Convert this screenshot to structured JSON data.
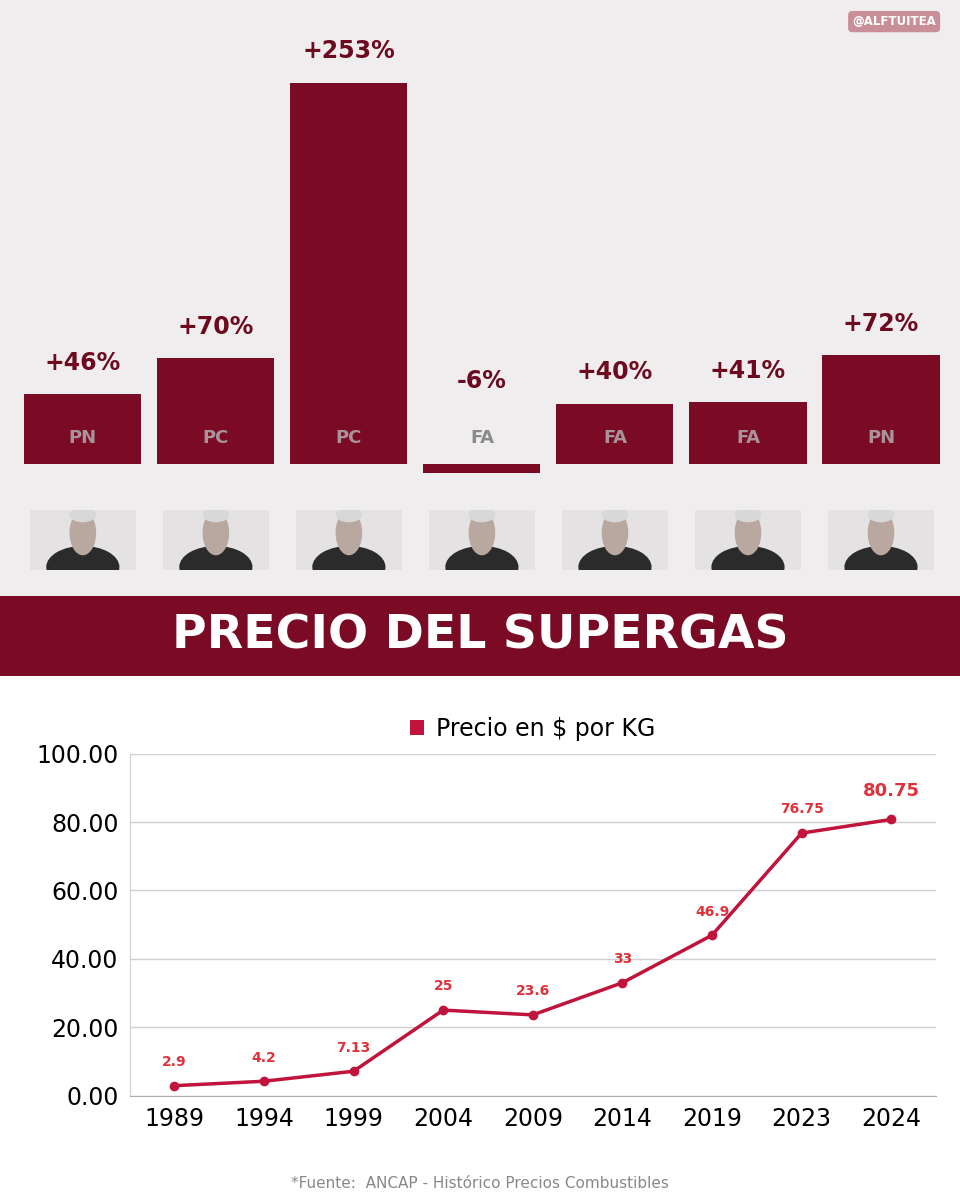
{
  "chart_data": [
    {
      "type": "bar",
      "title": "PRECIO DEL SUPERGAS",
      "categories": [
        "PN",
        "PC",
        "PC",
        "FA",
        "FA",
        "FA",
        "PN"
      ],
      "values": [
        46,
        70,
        253,
        -6,
        40,
        41,
        72
      ],
      "value_labels": [
        "+46%",
        "+70%",
        "+253%",
        "-6%",
        "+40%",
        "+41%",
        "+72%"
      ],
      "color": "#7b0a24",
      "data_labels": true,
      "tick_labels": false,
      "annotations": [
        "@ALFTUITEA"
      ]
    },
    {
      "type": "line",
      "categories": [
        "1989",
        "1994",
        "1999",
        "2004",
        "2009",
        "2014",
        "2019",
        "2023",
        "2024"
      ],
      "series": [
        {
          "name": "Precio en $ por KG",
          "color": "#c0143c",
          "values": [
            2.9,
            4.2,
            7.13,
            25,
            23.6,
            33,
            46.9,
            76.75,
            80.75
          ],
          "marker": "o",
          "line_style": "solid"
        }
      ],
      "ylim": [
        0,
        100
      ],
      "yticks": [
        {
          "value": 0,
          "label": "0.00"
        },
        {
          "value": 20,
          "label": "20.00"
        },
        {
          "value": 40,
          "label": "40.00"
        },
        {
          "value": 60,
          "label": "60.00"
        },
        {
          "value": 80,
          "label": "80.00"
        },
        {
          "value": 100,
          "label": "100.00"
        }
      ],
      "grid": true,
      "legend": "upper center",
      "data_labels": true,
      "annotations": [
        "*Fuente:  ANCAP - Histórico Precios Combustibles"
      ]
    }
  ]
}
